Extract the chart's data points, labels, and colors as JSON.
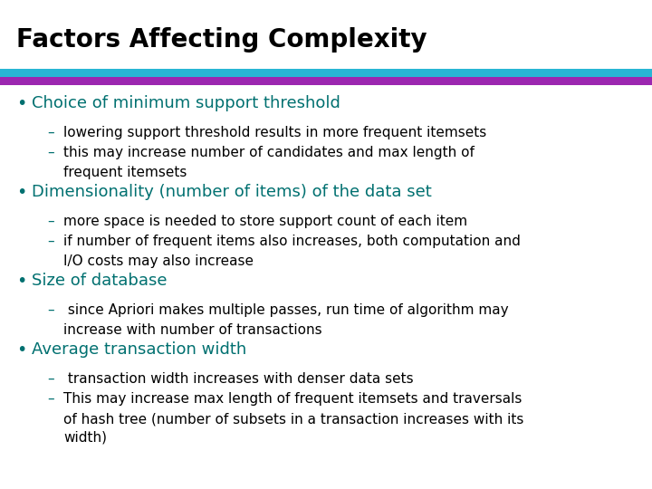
{
  "title": "Factors Affecting Complexity",
  "title_color": "#000000",
  "title_fontsize": 20,
  "title_bold": true,
  "bg_color": "#ffffff",
  "bar1_color": "#29b6d4",
  "bar2_color": "#9c27b0",
  "bullet_color": "#007070",
  "text_color": "#000000",
  "bullet_fontsize": 13,
  "sub_fontsize": 11,
  "bullets": [
    {
      "text": "Choice of minimum support threshold",
      "subs": [
        [
          "lowering support threshold results in more frequent itemsets"
        ],
        [
          "this may increase number of candidates and max length of",
          "frequent itemsets"
        ]
      ]
    },
    {
      "text": "Dimensionality (number of items) of the data set",
      "subs": [
        [
          "more space is needed to store support count of each item"
        ],
        [
          "if number of frequent items also increases, both computation and",
          "I/O costs may also increase"
        ]
      ]
    },
    {
      "text": "Size of database",
      "subs": [
        [
          " since Apriori makes multiple passes, run time of algorithm may",
          "increase with number of transactions"
        ]
      ]
    },
    {
      "text": "Average transaction width",
      "subs": [
        [
          " transaction width increases with denser data sets"
        ],
        [
          "This may increase max length of frequent itemsets and traversals",
          "of hash tree (number of subsets in a transaction increases with its",
          "width)"
        ]
      ]
    }
  ]
}
